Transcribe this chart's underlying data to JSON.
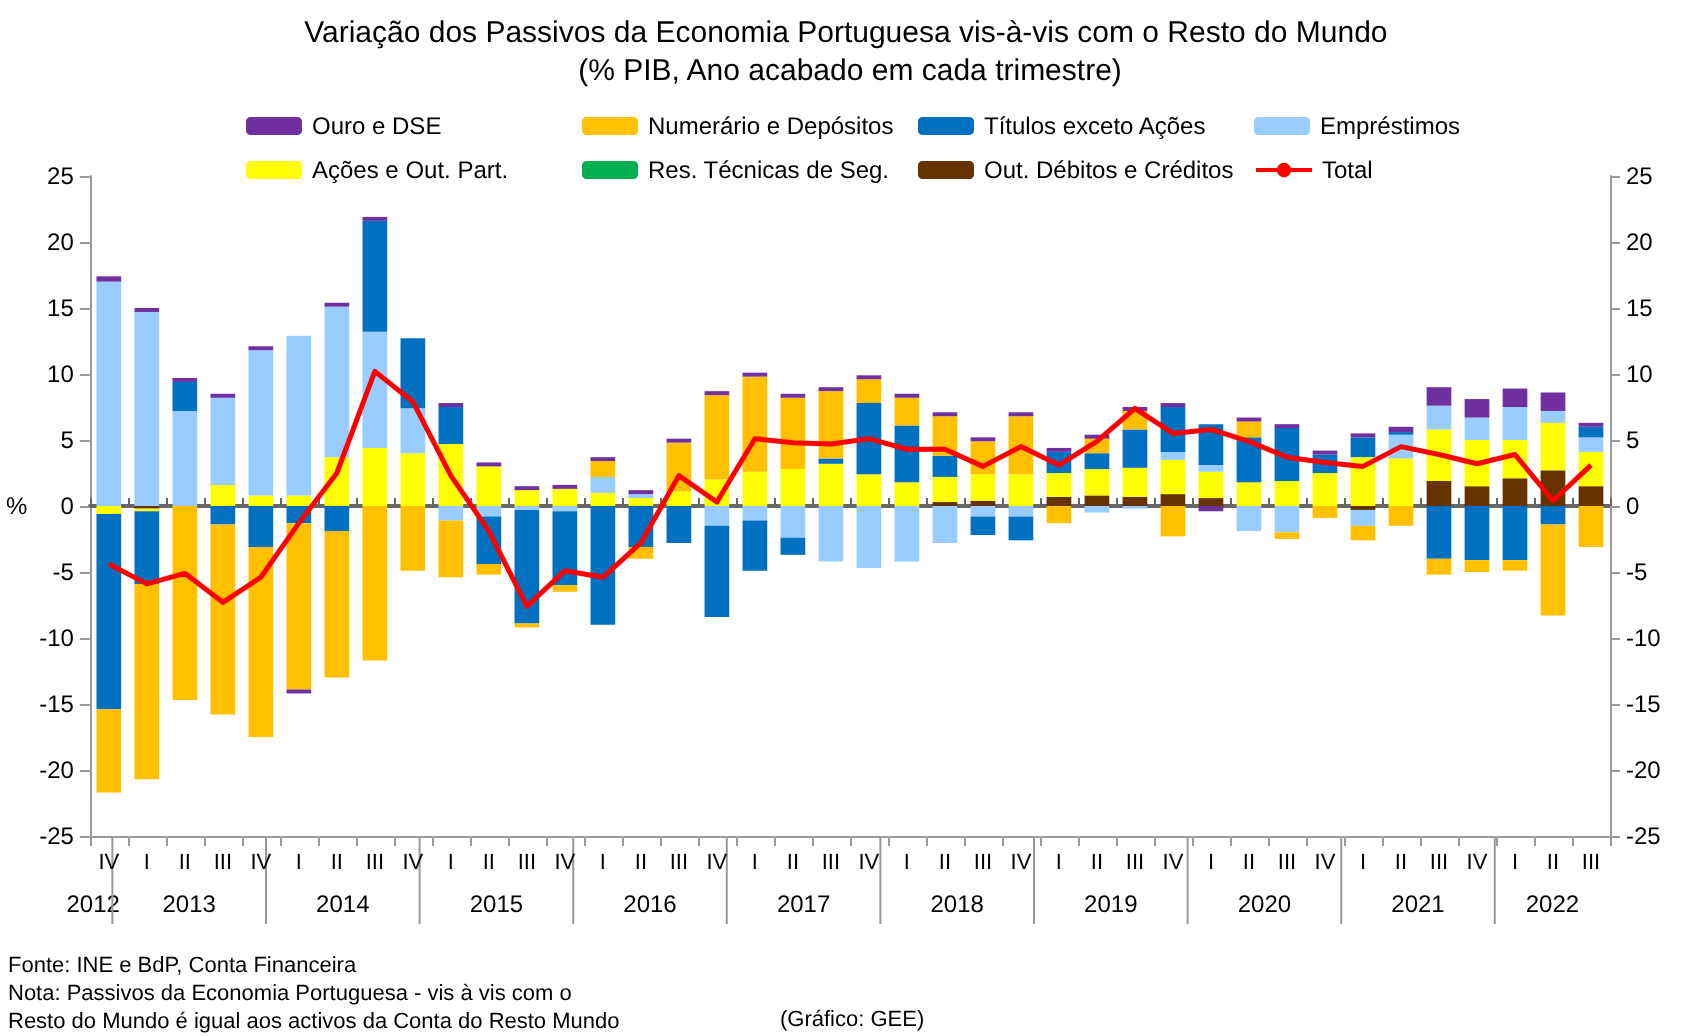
{
  "chart_data": {
    "type": "bar",
    "title": "Variação dos Passivos da Economia Portuguesa vis-à-vis com o Resto do Mundo (% PIB, Ano acabado em cada trimestre)",
    "ylabel": "%",
    "categories": [
      "IV",
      "I",
      "II",
      "III",
      "IV",
      "I",
      "II",
      "III",
      "IV",
      "I",
      "II",
      "III",
      "IV",
      "I",
      "II",
      "III",
      "IV",
      "I",
      "II",
      "III",
      "IV",
      "I",
      "II",
      "III",
      "IV",
      "I",
      "II",
      "III",
      "IV",
      "I",
      "II",
      "III",
      "IV",
      "I",
      "II",
      "III",
      "IV",
      "I",
      "II",
      "III"
    ],
    "stacked": true,
    "legend": "top",
    "marker": "none",
    "ylim": [
      -25,
      25
    ],
    "yticks": [
      -25,
      -20,
      -15,
      -10,
      -5,
      0,
      5,
      10,
      15,
      20,
      25
    ],
    "y2lim": [
      -25,
      25
    ],
    "y2ticks": [
      -25,
      -20,
      -15,
      -10,
      -5,
      0,
      5,
      10,
      15,
      20,
      25
    ],
    "series": [
      {
        "name": "Out. Débitos e Créditos",
        "color": "#663300",
        "values": [
          0,
          -0.2,
          0,
          0,
          0,
          0,
          0,
          0,
          0,
          0,
          0,
          0,
          0,
          0,
          0,
          0,
          0,
          0,
          0,
          0,
          0,
          0,
          0.3,
          0.4,
          0,
          0.7,
          0.8,
          0.7,
          0.9,
          0.6,
          0,
          0,
          0,
          -0.3,
          0,
          1.9,
          1.5,
          2.1,
          2.7,
          1.5
        ]
      },
      {
        "name": "Res. Técnicas de Seg.",
        "color": "#00b050",
        "values": [
          0,
          0,
          0,
          0,
          0,
          0,
          0,
          0,
          0,
          0,
          0,
          0,
          0,
          0,
          0,
          0,
          0,
          0,
          0,
          0,
          0,
          0,
          0,
          0,
          0,
          0,
          0,
          0,
          0,
          0,
          0,
          0,
          0,
          0,
          0,
          0,
          0,
          0,
          0,
          0
        ]
      },
      {
        "name": "Ações e Out. Part.",
        "color": "#ffff00",
        "values": [
          -0.6,
          -0.2,
          0,
          1.6,
          0.8,
          0.8,
          3.7,
          4.4,
          4.0,
          4.7,
          3.0,
          1.2,
          1.3,
          1.0,
          0.6,
          1.1,
          2.0,
          2.6,
          2.8,
          3.2,
          2.4,
          1.8,
          1.9,
          2.0,
          2.4,
          1.8,
          2.0,
          2.2,
          2.6,
          2.0,
          1.8,
          1.9,
          2.5,
          3.7,
          3.6,
          3.9,
          3.5,
          2.9,
          3.6,
          2.6
        ]
      },
      {
        "name": "Empréstimos",
        "color": "#99ccff",
        "values": [
          17.0,
          14.7,
          7.2,
          6.6,
          11.0,
          12.1,
          11.4,
          8.8,
          3.4,
          -1.1,
          -0.8,
          -0.3,
          -0.4,
          1.2,
          0.3,
          0,
          -1.5,
          -1.1,
          -2.4,
          -4.2,
          -4.7,
          -4.2,
          -2.8,
          -0.8,
          -0.8,
          0,
          -0.5,
          -0.2,
          0.6,
          0.5,
          -1.9,
          -2.0,
          0,
          -1.2,
          1.8,
          1.8,
          1.7,
          2.5,
          0.9,
          1.1
        ]
      },
      {
        "name": "Títulos exceto Ações",
        "color": "#0070c0",
        "values": [
          -14.8,
          -5.5,
          2.2,
          -1.4,
          -3.1,
          -1.3,
          -1.9,
          8.4,
          5.3,
          2.8,
          -3.6,
          -8.6,
          -5.6,
          -9.0,
          -3.1,
          -2.8,
          -6.9,
          -3.8,
          -1.3,
          0.4,
          5.4,
          4.3,
          1.6,
          -1.4,
          -1.8,
          1.6,
          1.2,
          2.9,
          3.4,
          3.1,
          3.4,
          4.0,
          1.4,
          1.5,
          0.2,
          -4.0,
          -4.1,
          -4.1,
          -1.4,
          0.8
        ]
      },
      {
        "name": "Numerário e Depósitos",
        "color": "#ffc000",
        "values": [
          -6.3,
          -14.8,
          -14.7,
          -14.4,
          -14.4,
          -12.6,
          -11.1,
          -11.7,
          -4.9,
          -4.3,
          -0.8,
          -0.3,
          -0.5,
          1.2,
          -0.9,
          3.7,
          6.4,
          7.2,
          5.4,
          5.1,
          1.8,
          2.1,
          3.0,
          2.5,
          4.4,
          -1.3,
          1.1,
          1.4,
          -2.3,
          0,
          1.2,
          -0.5,
          -0.9,
          -1.1,
          -1.5,
          -1.2,
          -0.9,
          -0.8,
          -6.9,
          -3.1
        ]
      },
      {
        "name": "Ouro e DSE",
        "color": "#7030a0",
        "values": [
          0.4,
          0.3,
          0.3,
          0.3,
          0.3,
          -0.3,
          0.3,
          0.3,
          0,
          0.3,
          0.3,
          0.3,
          0.3,
          0.3,
          0.3,
          0.3,
          0.3,
          0.3,
          0.3,
          0.3,
          0.3,
          0.3,
          0.3,
          0.3,
          0.3,
          0.3,
          0.3,
          0.3,
          0.3,
          -0.4,
          0.3,
          0.3,
          0.3,
          0.3,
          0.4,
          1.4,
          1.4,
          1.4,
          1.4,
          0.3
        ]
      },
      {
        "name": "Total",
        "type": "line",
        "color": "#ff0000",
        "values": [
          -4.4,
          -5.9,
          -5.1,
          -7.3,
          -5.4,
          -1.3,
          2.5,
          10.2,
          7.9,
          2.3,
          -1.9,
          -7.6,
          -4.9,
          -5.4,
          -2.8,
          2.3,
          0.3,
          5.1,
          4.8,
          4.7,
          5.1,
          4.3,
          4.3,
          3.0,
          4.5,
          3.1,
          4.9,
          7.4,
          5.5,
          5.8,
          4.9,
          3.7,
          3.3,
          3.0,
          4.5,
          3.9,
          3.2,
          3.9,
          0.4,
          3.1
        ]
      }
    ],
    "annotations": [
      "2012",
      "2013",
      "2014",
      "2015",
      "2016",
      "2017",
      "2018",
      "2019",
      "2020",
      "2021",
      "2022",
      "Fonte: INE e BdP, Conta Financeira",
      "Nota: Passivos da Economia Portuguesa - vis à vis com o\nResto do Mundo é igual aos activos da Conta do Resto Mundo",
      "(Gráfico: GEE)"
    ]
  }
}
